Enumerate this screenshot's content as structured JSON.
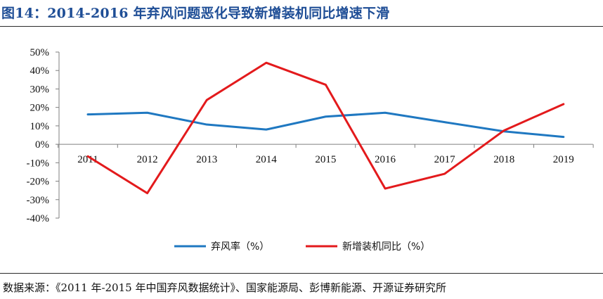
{
  "figure": {
    "title": "图14：2014-2016 年弃风问题恶化导致新增装机同比增速下滑",
    "source": "数据来源：《2011 年-2015 年中国弃风数据统计》、国家能源局、彭博新能源、开源证券研究所"
  },
  "chart_data": {
    "type": "line",
    "title": "",
    "xlabel": "",
    "ylabel": "",
    "categories": [
      "2011",
      "2012",
      "2013",
      "2014",
      "2015",
      "2016",
      "2017",
      "2018",
      "2019"
    ],
    "y_ticks": [
      "50%",
      "40%",
      "30%",
      "20%",
      "10%",
      "0%",
      "-10%",
      "-20%",
      "-30%",
      "-40%"
    ],
    "ylim": [
      -40,
      50
    ],
    "grid": false,
    "legend_position": "bottom",
    "series": [
      {
        "name": "弃风率（%）",
        "color": "#1f78c1",
        "values": [
          16.2,
          17.1,
          10.7,
          8.0,
          15.0,
          17.1,
          12.0,
          7.0,
          4.0
        ]
      },
      {
        "name": "新增装机同比（%）",
        "color": "#e31a1c",
        "values": [
          -6.5,
          -26.5,
          24.0,
          44.2,
          32.3,
          -24.0,
          -16.0,
          7.5,
          21.8
        ]
      }
    ]
  }
}
